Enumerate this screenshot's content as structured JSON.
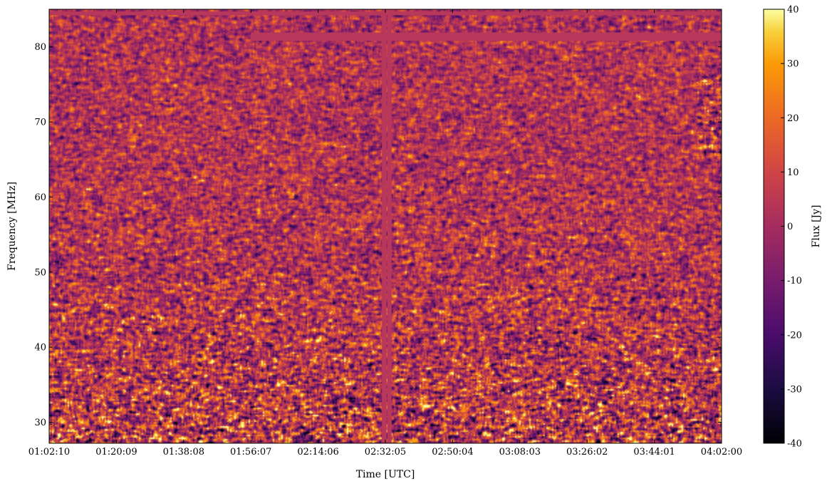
{
  "chart_data": {
    "type": "heatmap",
    "xlabel": "Time [UTC]",
    "ylabel": "Frequency [MHz]",
    "x_tick_labels": [
      "01:02:10",
      "01:20:09",
      "01:38:08",
      "01:56:07",
      "02:14:06",
      "02:32:05",
      "02:50:04",
      "03:08:03",
      "03:26:02",
      "03:44:01",
      "04:02:00"
    ],
    "x_range": [
      "01:02:10",
      "04:02:00"
    ],
    "y_ticks": [
      30,
      40,
      50,
      60,
      70,
      80
    ],
    "y_range": [
      27.2,
      85.0
    ],
    "colorbar": {
      "label": "Flux [Jy]",
      "ticks": [
        -40,
        -30,
        -20,
        -10,
        0,
        10,
        20,
        30,
        40
      ],
      "range": [
        -40,
        40
      ],
      "colormap": "inferno"
    },
    "masked_value_color": "#b8385c",
    "masked_regions": {
      "time_columns": [
        {
          "start": "02:31:10",
          "end": "02:32:25"
        },
        {
          "start": "02:32:35",
          "end": "02:33:45"
        }
      ],
      "frequency_rows": [
        {
          "from_time": "01:56:07",
          "to_time": "04:02:00",
          "freq_min": 80.8,
          "freq_max": 81.9
        },
        {
          "from_time": "01:02:10",
          "to_time": "04:02:00",
          "freq_min": 84.2,
          "freq_max": 84.7
        }
      ]
    },
    "grid": false,
    "legend": "none"
  }
}
